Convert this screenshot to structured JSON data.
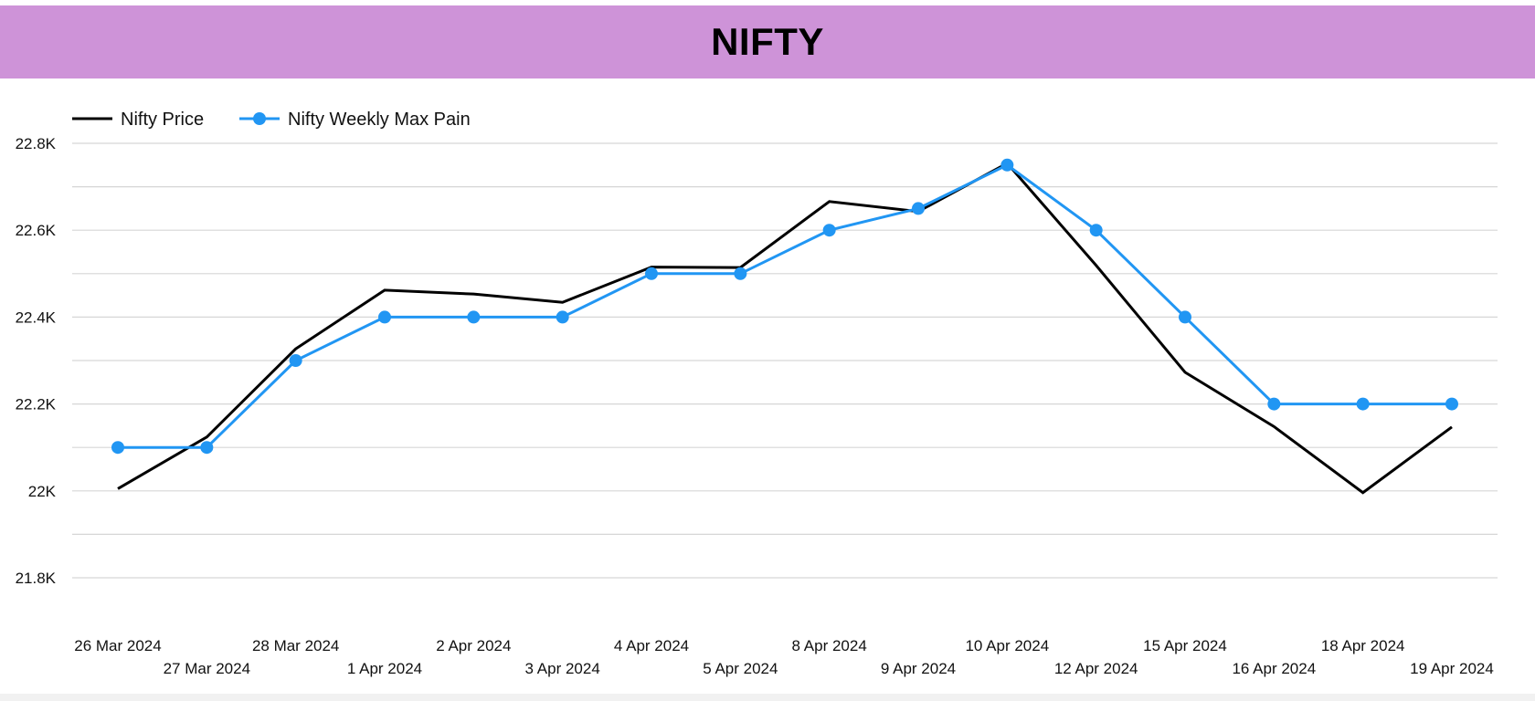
{
  "header": {
    "title": "NIFTY"
  },
  "colors": {
    "header_bg": "#ce93d8",
    "price_line": "#000000",
    "maxpain_line": "#2196f3",
    "grid": "#d6d6d6",
    "text": "#111111"
  },
  "chart_data": {
    "type": "line",
    "title": "NIFTY",
    "legend_position": "top-left",
    "grid": true,
    "ylim": [
      21800,
      22800
    ],
    "y_ticks": [
      {
        "value": 21800,
        "label": "21.8K"
      },
      {
        "value": 22000,
        "label": "22K"
      },
      {
        "value": 22200,
        "label": "22.2K"
      },
      {
        "value": 22400,
        "label": "22.4K"
      },
      {
        "value": 22600,
        "label": "22.6K"
      },
      {
        "value": 22800,
        "label": "22.8K"
      }
    ],
    "categories": [
      "26 Mar 2024",
      "27 Mar 2024",
      "28 Mar 2024",
      "1 Apr 2024",
      "2 Apr 2024",
      "3 Apr 2024",
      "4 Apr 2024",
      "5 Apr 2024",
      "8 Apr 2024",
      "9 Apr 2024",
      "10 Apr 2024",
      "12 Apr 2024",
      "15 Apr 2024",
      "16 Apr 2024",
      "18 Apr 2024",
      "19 Apr 2024"
    ],
    "series": [
      {
        "name": "Nifty Price",
        "color": "#000000",
        "markers": false,
        "values": [
          22005,
          22124,
          22327,
          22462,
          22453,
          22434,
          22515,
          22514,
          22666,
          22643,
          22754,
          22519,
          22273,
          22148,
          21996,
          22147
        ]
      },
      {
        "name": "Nifty Weekly Max Pain",
        "color": "#2196f3",
        "markers": true,
        "values": [
          22100,
          22100,
          22300,
          22400,
          22400,
          22400,
          22500,
          22500,
          22600,
          22650,
          22750,
          22600,
          22400,
          22200,
          22200,
          22200
        ]
      }
    ]
  }
}
